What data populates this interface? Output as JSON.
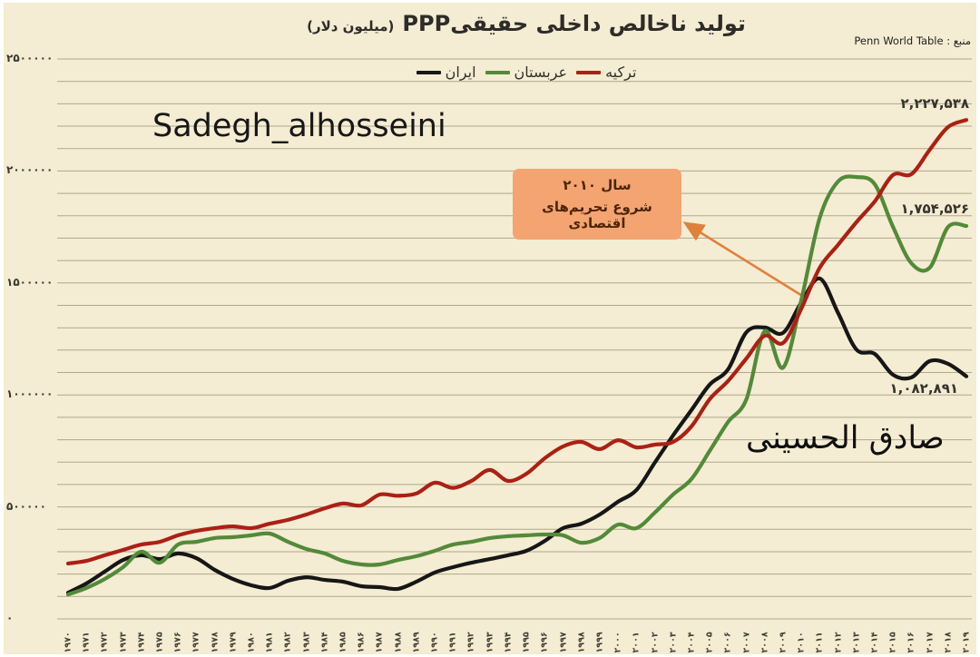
{
  "title": {
    "text": "تولید ناخالص داخلی حقیقیPPP",
    "unit": "(میلیون دلار)"
  },
  "source": {
    "text": "منبع : Penn World Table"
  },
  "watermark_en": "Sadegh_alhosseini",
  "watermark_fa": "صادق الحسینی",
  "annotation": {
    "line1": "سال ۲۰۱۰",
    "line2": "شروع تحریم‌های اقتصادی",
    "arrow_color": "#e0813b",
    "box_color": "#f4a470"
  },
  "end_labels": {
    "turkey": "۲,۲۲۷,۵۳۸",
    "saudi": "۱,۷۵۴,۵۲۶",
    "iran": "۱,۰۸۲,۸۹۱"
  },
  "legend": [
    {
      "label": "ترکیه",
      "color": "#ab2015"
    },
    {
      "label": "عربستان",
      "color": "#538a3a"
    },
    {
      "label": "ایران",
      "color": "#161616"
    }
  ],
  "colors": {
    "background": "#f4ecd3",
    "gridline": "#b0a88d",
    "frame": "#ffffff"
  },
  "chart_data": {
    "type": "line",
    "title": "تولید ناخالص داخلی حقیقیPPP (میلیون دلار)",
    "xlabel": "",
    "ylabel": "",
    "ylim": [
      0,
      2500000
    ],
    "grid": "horizontal",
    "gridline_step": 100000,
    "legend_position": "top-center",
    "x": [
      1970,
      1971,
      1972,
      1973,
      1974,
      1975,
      1976,
      1977,
      1978,
      1979,
      1980,
      1981,
      1982,
      1983,
      1984,
      1985,
      1986,
      1987,
      1988,
      1989,
      1990,
      1991,
      1992,
      1993,
      1994,
      1995,
      1996,
      1997,
      1998,
      1999,
      2000,
      2001,
      2002,
      2003,
      2004,
      2005,
      2006,
      2007,
      2008,
      2009,
      2010,
      2011,
      2012,
      2013,
      2014,
      2015,
      2016,
      2017,
      2018,
      2019
    ],
    "x_tick_labels": [
      "۱۹۷۰",
      "۱۹۷۱",
      "۱۹۷۲",
      "۱۹۷۳",
      "۱۹۷۴",
      "۱۹۷۵",
      "۱۹۷۶",
      "۱۹۷۷",
      "۱۹۷۸",
      "۱۹۷۹",
      "۱۹۸۰",
      "۱۹۸۱",
      "۱۹۸۲",
      "۱۹۸۳",
      "۱۹۸۴",
      "۱۹۸۵",
      "۱۹۸۶",
      "۱۹۸۷",
      "۱۹۸۸",
      "۱۹۸۹",
      "۱۹۹۰",
      "۱۹۹۱",
      "۱۹۹۲",
      "۱۹۹۳",
      "۱۹۹۴",
      "۱۹۹۵",
      "۱۹۹۶",
      "۱۹۹۷",
      "۱۹۹۸",
      "۱۹۹۹",
      "۲۰۰۰",
      "۲۰۰۱",
      "۲۰۰۲",
      "۲۰۰۳",
      "۲۰۰۴",
      "۲۰۰۵",
      "۲۰۰۶",
      "۲۰۰۷",
      "۲۰۰۸",
      "۲۰۰۹",
      "۲۰۱۰",
      "۲۰۱۱",
      "۲۰۱۲",
      "۲۰۱۳",
      "۲۰۱۴",
      "۲۰۱۵",
      "۲۰۱۶",
      "۲۰۱۷",
      "۲۰۱۸",
      "۲۰۱۹"
    ],
    "y_tick_values": [
      2500000,
      2000000,
      1500000,
      1000000,
      500000,
      0
    ],
    "y_tick_labels": [
      "۲۵۰۰۰۰۰",
      "۲۰۰۰۰۰۰",
      "۱۵۰۰۰۰۰",
      "۱۰۰۰۰۰۰",
      "۵۰۰۰۰۰",
      "۰"
    ],
    "series": [
      {
        "id": "iran",
        "name": "ایران",
        "color": "#161616",
        "end_label": "۱,۰۸۲,۸۹۱",
        "values": [
          117000,
          158000,
          211000,
          263000,
          284000,
          267000,
          292000,
          271000,
          219000,
          178000,
          150000,
          138000,
          170000,
          186000,
          174000,
          166000,
          146000,
          142000,
          134000,
          166000,
          207000,
          231000,
          251000,
          267000,
          284000,
          304000,
          348000,
          405000,
          425000,
          466000,
          523000,
          575000,
          697000,
          819000,
          932000,
          1046000,
          1114000,
          1280000,
          1301000,
          1277000,
          1414000,
          1520000,
          1366000,
          1203000,
          1183000,
          1090000,
          1078000,
          1151000,
          1139000,
          1082891
        ]
      },
      {
        "id": "saudi",
        "name": "عربستان",
        "color": "#538a3a",
        "end_label": "۱,۷۵۴,۵۲۶",
        "values": [
          109000,
          138000,
          178000,
          231000,
          300000,
          251000,
          332000,
          344000,
          361000,
          365000,
          373000,
          381000,
          344000,
          312000,
          292000,
          259000,
          243000,
          243000,
          263000,
          280000,
          304000,
          332000,
          344000,
          361000,
          369000,
          373000,
          377000,
          373000,
          340000,
          361000,
          421000,
          405000,
          474000,
          555000,
          624000,
          750000,
          879000,
          981000,
          1285000,
          1122000,
          1426000,
          1791000,
          1953000,
          1973000,
          1941000,
          1750000,
          1588000,
          1568000,
          1750000,
          1754526
        ]
      },
      {
        "id": "turkey",
        "name": "ترکیه",
        "color": "#ab2015",
        "end_label": "۲,۲۲۷,۵۳۸",
        "values": [
          247000,
          259000,
          284000,
          308000,
          332000,
          344000,
          373000,
          393000,
          405000,
          413000,
          405000,
          425000,
          442000,
          466000,
          494000,
          515000,
          507000,
          555000,
          550000,
          560000,
          608000,
          585000,
          616000,
          665000,
          616000,
          648000,
          717000,
          770000,
          790000,
          758000,
          798000,
          766000,
          778000,
          790000,
          859000,
          981000,
          1062000,
          1163000,
          1264000,
          1232000,
          1386000,
          1568000,
          1670000,
          1771000,
          1864000,
          1982000,
          1986000,
          2095000,
          2196000,
          2227538
        ]
      }
    ],
    "annotations": [
      {
        "text": "سال ۲۰۱۰ — شروع تحریم‌های اقتصادی",
        "x": 2010,
        "y": 1430000
      }
    ]
  }
}
